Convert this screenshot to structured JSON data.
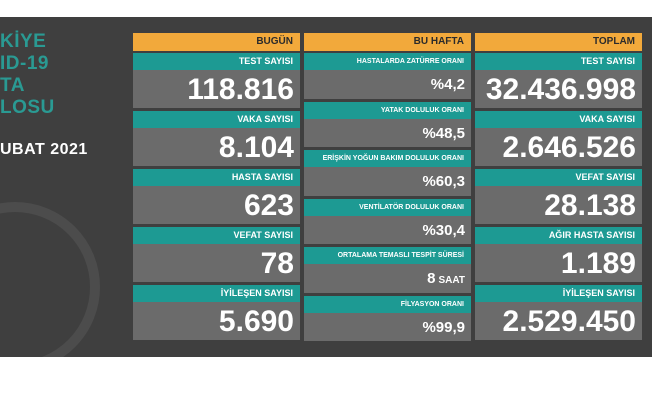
{
  "side_title": [
    "KİYE",
    "ID-19",
    "TA",
    "LOSU"
  ],
  "side_date": "UBAT 2021",
  "columns": [
    {
      "header": "BUGÜN",
      "items": [
        {
          "label": "TEST SAYISI",
          "value": "118.816"
        },
        {
          "label": "VAKA SAYISI",
          "value": "8.104"
        },
        {
          "label": "HASTA SAYISI",
          "value": "623"
        },
        {
          "label": "VEFAT SAYISI",
          "value": "78"
        },
        {
          "label": "İYİLEŞEN SAYISI",
          "value": "5.690"
        }
      ]
    },
    {
      "header": "BU HAFTA",
      "items": [
        {
          "label": "HASTALARDA ZATÜRRE ORANI",
          "value": "%4,2"
        },
        {
          "label": "YATAK DOLULUK ORANI",
          "value": "%48,5"
        },
        {
          "label": "ERİŞKİN YOĞUN BAKIM DOLULUK ORANI",
          "value": "%60,3"
        },
        {
          "label": "VENTİLATÖR DOLULUK ORANI",
          "value": "%30,4"
        },
        {
          "label": "ORTALAMA TEMASLI TESPİT SÜRESİ",
          "value": "8",
          "unit": "SAAT"
        },
        {
          "label": "FİLYASYON ORANI",
          "value": "%99,9"
        }
      ]
    },
    {
      "header": "TOPLAM",
      "items": [
        {
          "label": "TEST SAYISI",
          "value": "32.436.998"
        },
        {
          "label": "VAKA SAYISI",
          "value": "2.646.526"
        },
        {
          "label": "VEFAT SAYISI",
          "value": "28.138"
        },
        {
          "label": "AĞIR HASTA SAYISI",
          "value": "1.189"
        },
        {
          "label": "İYİLEŞEN SAYISI",
          "value": "2.529.450"
        }
      ]
    }
  ]
}
